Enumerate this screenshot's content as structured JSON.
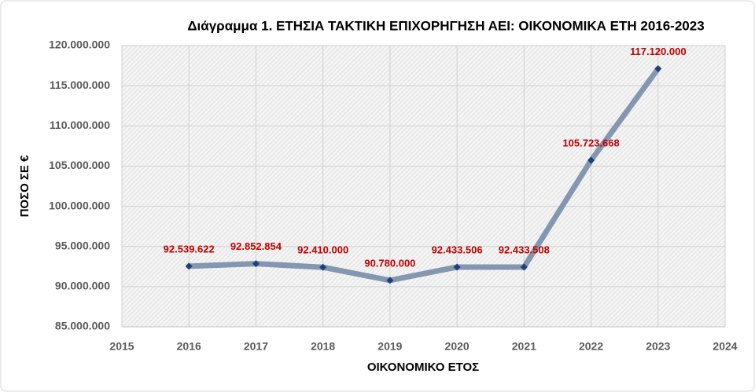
{
  "chart_data": {
    "type": "line",
    "title": "Διάγραμμα 1. ΕΤΗΣΙΑ ΤΑΚΤΙΚΗ ΕΠΙΧΟΡΗΓΗΣΗ ΑΕΙ: ΟΙΚΟΝΟΜΙΚΑ ΕΤΗ 2016-2023",
    "x_label": "ΟΙΚΟΝΟΜΙΚΟ ΕΤΟΣ",
    "y_label": "ΠΟΣΟ ΣΕ €",
    "x": [
      2016,
      2017,
      2018,
      2019,
      2020,
      2021,
      2022,
      2023
    ],
    "values": [
      92539622,
      92852854,
      92410000,
      90780000,
      92433506,
      92433508,
      105723668,
      117120000
    ],
    "value_labels": [
      "92.539.622",
      "92.852.854",
      "92.410.000",
      "90.780.000",
      "92.433.506",
      "92.433.508",
      "105.723.668",
      "117.120.000"
    ],
    "color": "#8497b0",
    "marker_color": "#1f3f7f",
    "label_color": "#c00000",
    "xlim": [
      2015,
      2024
    ],
    "xticks": [
      2015,
      2016,
      2017,
      2018,
      2019,
      2020,
      2021,
      2022,
      2023,
      2024
    ],
    "ylim": [
      85000000,
      120000000
    ],
    "yticks": [
      {
        "value": 85000000,
        "label": "85.000.000"
      },
      {
        "value": 90000000,
        "label": "90.000.000"
      },
      {
        "value": 95000000,
        "label": "95.000.000"
      },
      {
        "value": 100000000,
        "label": "100.000.000"
      },
      {
        "value": 105000000,
        "label": "105.000.000"
      },
      {
        "value": 110000000,
        "label": "110.000.000"
      },
      {
        "value": 115000000,
        "label": "115.000.000"
      },
      {
        "value": 120000000,
        "label": "120.000.000"
      }
    ],
    "grid": true
  }
}
